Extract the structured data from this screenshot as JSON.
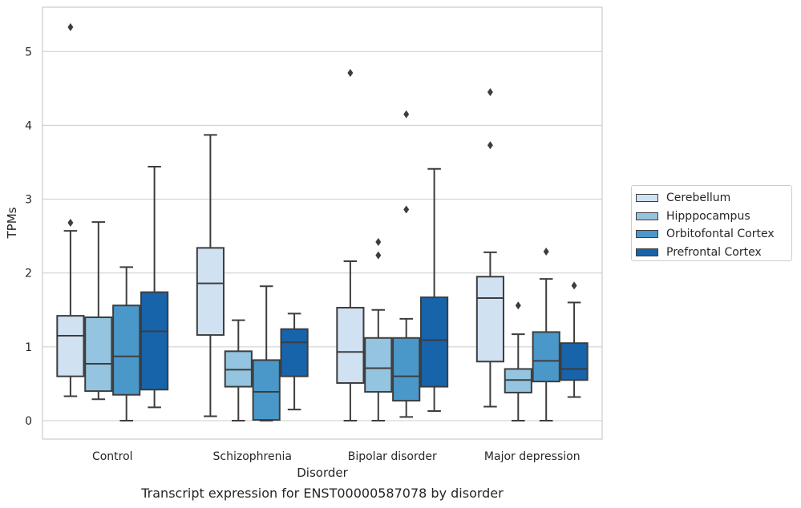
{
  "chart_data": {
    "type": "box",
    "title": "Transcript expression for ENST00000587078 by disorder",
    "xlabel": "Disorder",
    "ylabel": "TPMs",
    "ylim": [
      -0.25,
      5.6
    ],
    "yticks": [
      0,
      1,
      2,
      3,
      4,
      5
    ],
    "grid": "horizontal",
    "legend_position": "right",
    "categories": [
      "Control",
      "Schizophrenia",
      "Bipolar disorder",
      "Major depression"
    ],
    "series": [
      {
        "name": "Cerebellum",
        "color": "#d0e1f2",
        "boxes": [
          {
            "whislo": 0.33,
            "q1": 0.6,
            "med": 1.15,
            "q3": 1.42,
            "whishi": 2.57,
            "fliers": [
              2.68,
              5.33
            ]
          },
          {
            "whislo": 0.06,
            "q1": 1.16,
            "med": 1.86,
            "q3": 2.34,
            "whishi": 3.87,
            "fliers": []
          },
          {
            "whislo": 0.0,
            "q1": 0.51,
            "med": 0.93,
            "q3": 1.53,
            "whishi": 2.16,
            "fliers": [
              4.71
            ]
          },
          {
            "whislo": 0.19,
            "q1": 0.8,
            "med": 1.66,
            "q3": 1.95,
            "whishi": 2.28,
            "fliers": [
              3.73,
              4.45
            ]
          }
        ]
      },
      {
        "name": "Hipppocampus",
        "color": "#94c4df",
        "boxes": [
          {
            "whislo": 0.29,
            "q1": 0.4,
            "med": 0.77,
            "q3": 1.4,
            "whishi": 2.69,
            "fliers": []
          },
          {
            "whislo": 0.0,
            "q1": 0.46,
            "med": 0.69,
            "q3": 0.94,
            "whishi": 1.36,
            "fliers": []
          },
          {
            "whislo": 0.0,
            "q1": 0.39,
            "med": 0.71,
            "q3": 1.12,
            "whishi": 1.5,
            "fliers": [
              2.24,
              2.42
            ]
          },
          {
            "whislo": 0.0,
            "q1": 0.38,
            "med": 0.55,
            "q3": 0.7,
            "whishi": 1.17,
            "fliers": [
              1.56
            ]
          }
        ]
      },
      {
        "name": "Orbitofontal Cortex",
        "color": "#4a98c9",
        "boxes": [
          {
            "whislo": 0.0,
            "q1": 0.35,
            "med": 0.87,
            "q3": 1.56,
            "whishi": 2.08,
            "fliers": []
          },
          {
            "whislo": 0.0,
            "q1": 0.01,
            "med": 0.39,
            "q3": 0.82,
            "whishi": 1.82,
            "fliers": []
          },
          {
            "whislo": 0.05,
            "q1": 0.27,
            "med": 0.6,
            "q3": 1.12,
            "whishi": 1.38,
            "fliers": [
              2.86,
              4.15
            ]
          },
          {
            "whislo": 0.0,
            "q1": 0.53,
            "med": 0.81,
            "q3": 1.2,
            "whishi": 1.92,
            "fliers": [
              2.29
            ]
          }
        ]
      },
      {
        "name": "Prefrontal Cortex",
        "color": "#1764ab",
        "boxes": [
          {
            "whislo": 0.18,
            "q1": 0.42,
            "med": 1.21,
            "q3": 1.74,
            "whishi": 3.44,
            "fliers": []
          },
          {
            "whislo": 0.15,
            "q1": 0.6,
            "med": 1.06,
            "q3": 1.24,
            "whishi": 1.45,
            "fliers": []
          },
          {
            "whislo": 0.13,
            "q1": 0.46,
            "med": 1.09,
            "q3": 1.67,
            "whishi": 3.41,
            "fliers": []
          },
          {
            "whislo": 0.32,
            "q1": 0.55,
            "med": 0.7,
            "q3": 1.05,
            "whishi": 1.6,
            "fliers": [
              1.83
            ]
          }
        ]
      }
    ]
  }
}
